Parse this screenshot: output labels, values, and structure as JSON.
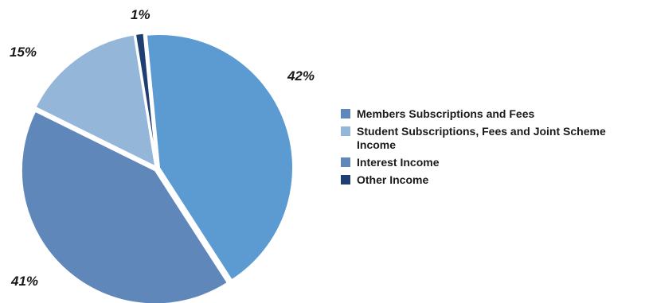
{
  "chart_data": {
    "type": "pie",
    "categories": [
      "Members Subscriptions and Fees",
      "Interest Income",
      "Student Subscriptions, Fees and Joint Scheme Income",
      "Other Income"
    ],
    "values": [
      42,
      41,
      15,
      1
    ],
    "value_labels": [
      "42%",
      "41%",
      "15%",
      "1%"
    ],
    "colors": [
      "#5b9bd1",
      "#5f87b9",
      "#94b6d9",
      "#1f3f73"
    ],
    "legend": {
      "placement": "right",
      "items": [
        {
          "label": "Members Subscriptions and Fees",
          "color": "#5f87b9"
        },
        {
          "label": "Student Subscriptions, Fees and Joint Scheme Income",
          "color": "#94b6d9"
        },
        {
          "label": "Interest Income",
          "color": "#5f87b9"
        },
        {
          "label": "Other Income",
          "color": "#1f3f73"
        }
      ]
    }
  }
}
